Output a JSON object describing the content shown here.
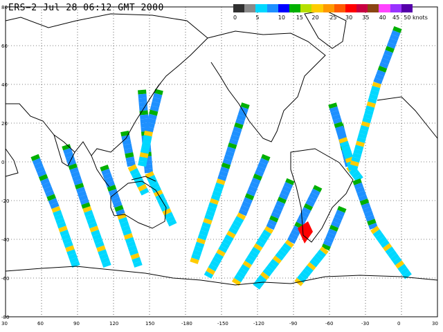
{
  "title": "ERS−2  Jul 28 06:12 GMT 2000",
  "legend": {
    "colors": [
      "#303030",
      "#8a8a8a",
      "#00d8ff",
      "#1e90ff",
      "#0000ff",
      "#00b000",
      "#b6e000",
      "#ffcc00",
      "#ff9900",
      "#ff5a00",
      "#ff0000",
      "#c80040",
      "#8b4513",
      "#ff44ff",
      "#9933ff",
      "#5500aa"
    ],
    "labels": [
      {
        "text": "0",
        "at": 0
      },
      {
        "text": "5",
        "at": 2
      },
      {
        "text": "10",
        "at": 4
      },
      {
        "text": "15",
        "at": 5.6
      },
      {
        "text": "20",
        "at": 7
      },
      {
        "text": "25",
        "at": 8.6
      },
      {
        "text": "30",
        "at": 10
      },
      {
        "text": "35",
        "at": 11.5
      },
      {
        "text": "40",
        "at": 13
      },
      {
        "text": "45",
        "at": 14.2
      },
      {
        "text": "50 knots",
        "at": 15.2
      }
    ]
  },
  "map": {
    "lat_labels": [
      "80",
      "60",
      "40",
      "20",
      "0",
      "-20",
      "-40",
      "-60",
      "-80"
    ],
    "lon_labels": [
      "30",
      "60",
      "90",
      "120",
      "150",
      "-180",
      "-150",
      "-120",
      "-90",
      "-60",
      "-30",
      "0",
      "30"
    ]
  },
  "palette": {
    "blue": "#1e90ff",
    "cyan": "#00d8ff",
    "green": "#00b000",
    "yellow": "#ffcc00",
    "orange": "#ff9900",
    "red": "#ff0000"
  }
}
